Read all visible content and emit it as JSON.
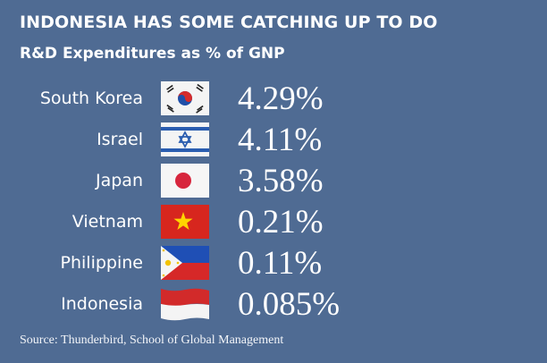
{
  "chart_data": {
    "type": "table",
    "title": "INDONESIA HAS SOME CATCHING UP TO DO",
    "subtitle": "R&D Expenditures as % of GNP",
    "categories": [
      "South Korea",
      "Israel",
      "Japan",
      "Vietnam",
      "Philippine",
      "Indonesia"
    ],
    "values": [
      4.29,
      4.11,
      3.58,
      0.21,
      0.11,
      0.085
    ],
    "value_labels": [
      "4.29%",
      "4.11%",
      "3.58%",
      "0.21%",
      "0.11%",
      "0.085%"
    ],
    "flag_icons": [
      "south-korea-flag-icon",
      "israel-flag-icon",
      "japan-flag-icon",
      "vietnam-flag-icon",
      "philippines-flag-icon",
      "indonesia-flag-icon"
    ],
    "source": "Source: Thunderbird, School of Global Management"
  },
  "colors": {
    "background": "#4f6b93",
    "text": "#ffffff"
  }
}
